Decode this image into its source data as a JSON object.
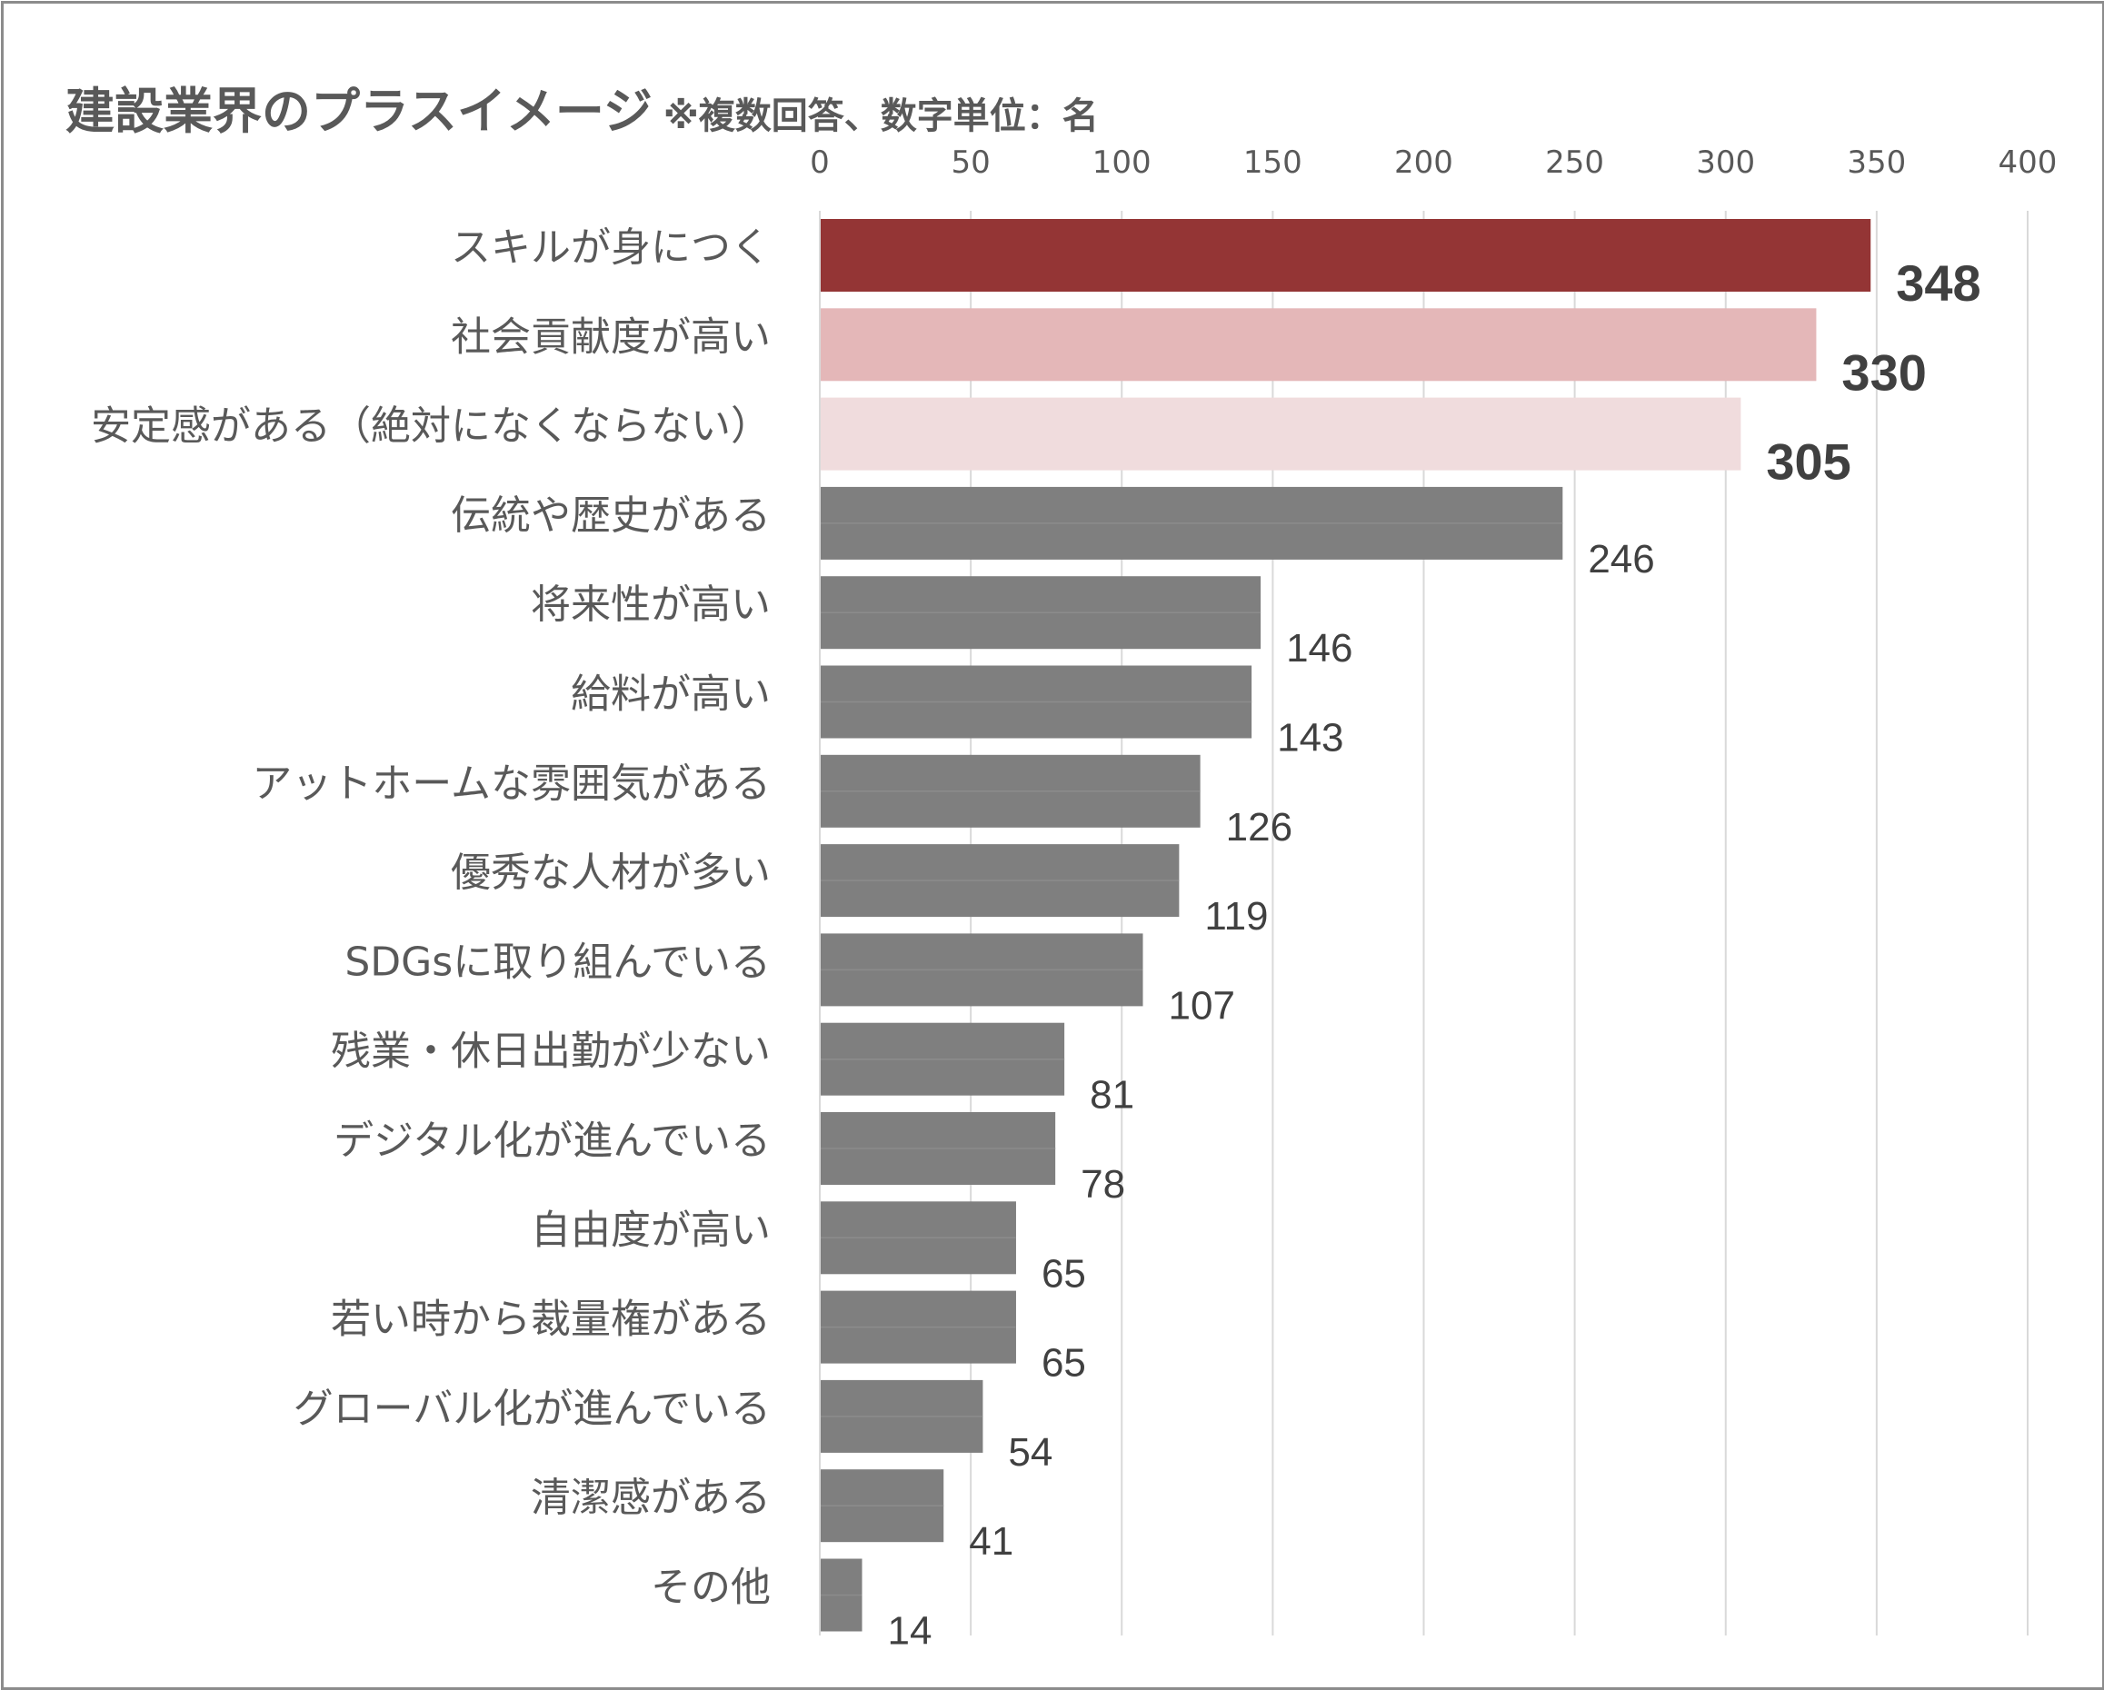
{
  "chart_data": {
    "type": "bar",
    "orientation": "horizontal",
    "title": "建設業界のプラスイメージ",
    "subtitle": "※複数回答、数字単位：名",
    "xlim": [
      0,
      400
    ],
    "x_ticks": [
      0,
      50,
      100,
      150,
      200,
      250,
      300,
      350,
      400
    ],
    "x_axis_position": "top",
    "grid": true,
    "categories": [
      "スキルが身につく",
      "社会貢献度が高い",
      "安定感がある（絶対になくならない）",
      "伝統や歴史がある",
      "将来性が高い",
      "給料が高い",
      "アットホームな雰囲気がある",
      "優秀な人材が多い",
      "SDGsに取り組んでいる",
      "残業・休日出勤が少ない",
      "デジタル化が進んでいる",
      "自由度が高い",
      "若い時から裁量権がある",
      "グローバル化が進んでいる",
      "清潔感がある",
      "その他"
    ],
    "values": [
      348,
      330,
      305,
      246,
      146,
      143,
      126,
      119,
      107,
      81,
      78,
      65,
      65,
      54,
      41,
      14
    ],
    "colors": [
      "#943535",
      "#e4b7b8",
      "#f0dcdd",
      "#7f7f7f",
      "#7f7f7f",
      "#7f7f7f",
      "#7f7f7f",
      "#7f7f7f",
      "#7f7f7f",
      "#7f7f7f",
      "#7f7f7f",
      "#7f7f7f",
      "#7f7f7f",
      "#7f7f7f",
      "#7f7f7f",
      "#7f7f7f"
    ],
    "highlight_top": 3
  }
}
